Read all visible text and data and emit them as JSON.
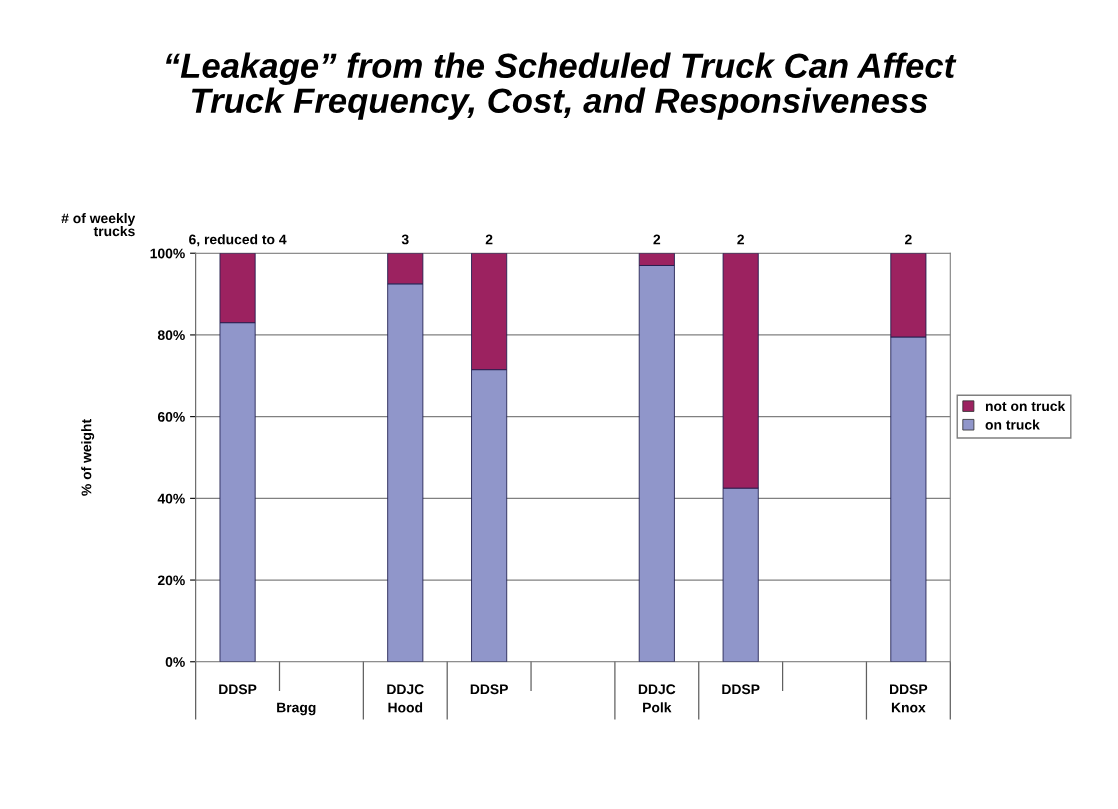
{
  "chart_data": {
    "type": "bar",
    "stacked": true,
    "title": "“Leakage” from the Scheduled Truck Can Affect\nTruck Frequency, Cost, and Responsiveness",
    "ylabel": "% of weight",
    "categories": [
      "DDSP",
      null,
      "DDJC",
      "DDSP",
      null,
      "DDJC",
      "DDSP",
      null,
      "DDSP"
    ],
    "series": [
      {
        "name": "on truck",
        "color": "#9096ca",
        "values": [
          83,
          null,
          92.5,
          71.5,
          null,
          97,
          42.5,
          null,
          79.5
        ]
      },
      {
        "name": "not on truck",
        "color": "#9c2260",
        "values": [
          17,
          null,
          7.5,
          28.5,
          null,
          3,
          57.5,
          null,
          20.5
        ]
      }
    ],
    "annotations": [
      "# of weekly\ntrucks",
      "Bragg",
      "Hood",
      "Polk",
      "Knox",
      "6, reduced to 4",
      "3",
      "2",
      "2",
      "2",
      "2"
    ],
    "ylim": [
      0,
      100
    ],
    "yticks": [
      {
        "value": 0,
        "label": "0%"
      },
      {
        "value": 20,
        "label": "20%"
      },
      {
        "value": 40,
        "label": "40%"
      },
      {
        "value": 60,
        "label": "60%"
      },
      {
        "value": 80,
        "label": "80%"
      },
      {
        "value": 100,
        "label": "100%"
      }
    ],
    "grid": "y",
    "legend": "right"
  }
}
